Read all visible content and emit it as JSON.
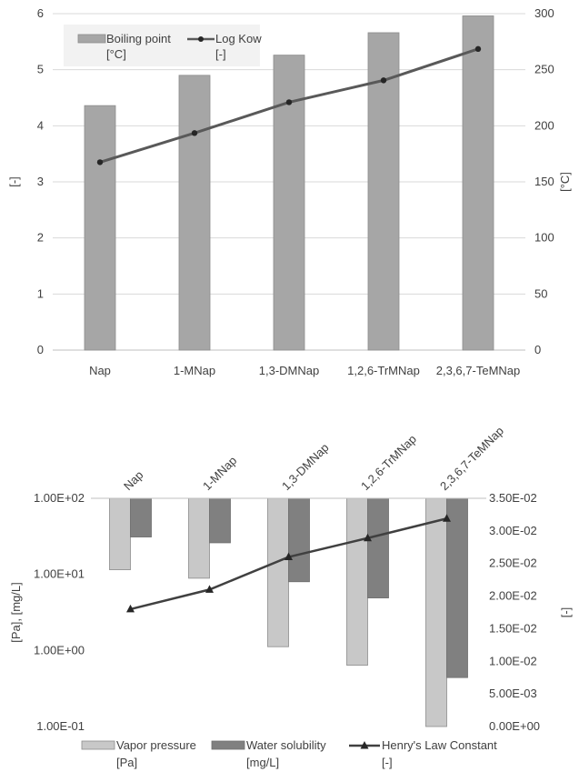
{
  "chart_data": [
    {
      "type": "bar",
      "categories": [
        "Nap",
        "1-MNap",
        "1,3-DMNap",
        "1,2,6-TrMNap",
        "2,3,6,7-TeMNap"
      ],
      "left_axis": {
        "label": "[-]",
        "ylim": [
          0,
          6
        ],
        "ticks": [
          "0",
          "1",
          "2",
          "3",
          "4",
          "5",
          "6"
        ]
      },
      "right_axis": {
        "label": "[°C]",
        "ylim": [
          0,
          300
        ],
        "ticks": [
          "0",
          "50",
          "100",
          "150",
          "200",
          "250",
          "300"
        ]
      },
      "grid": true,
      "legend_position": "top-left",
      "series": [
        {
          "name": "Boiling point",
          "unit": "[°C]",
          "type": "bar",
          "axis": "right",
          "color": "#a6a6a6",
          "values": [
            218,
            245,
            263,
            283,
            298
          ]
        },
        {
          "name": "Log Kow",
          "unit": "[-]",
          "type": "line",
          "axis": "left",
          "color": "#595959",
          "values": [
            3.35,
            3.87,
            4.42,
            4.81,
            5.37
          ]
        }
      ]
    },
    {
      "type": "bar",
      "categories": [
        "Nap",
        "1-MNap",
        "1,3-DMNap",
        "1,2,6-TrMNap",
        "2,3,6,7-TeMNap"
      ],
      "left_axis": {
        "label": "[Pa], [mg/L]",
        "scale": "log",
        "ylim": [
          0.1,
          100
        ],
        "ticks": [
          "1.00E+02",
          "1.00E+01",
          "1.00E+00",
          "1.00E-01"
        ]
      },
      "right_axis": {
        "label": "[-]",
        "ylim": [
          0,
          0.035
        ],
        "ticks": [
          "3.50E-02",
          "3.00E-02",
          "2.50E-02",
          "2.00E-02",
          "1.50E-02",
          "1.00E-02",
          "5.00E-03",
          "0.00E+00"
        ]
      },
      "grid": false,
      "legend_position": "bottom",
      "series": [
        {
          "name": "Vapor pressure",
          "unit": "[Pa]",
          "type": "bar",
          "axis": "left",
          "color": "#c8c8c8",
          "values": [
            11.5,
            8.9,
            1.12,
            0.64,
            0.1
          ]
        },
        {
          "name": "Water solubility",
          "unit": "[mg/L]",
          "type": "bar",
          "axis": "left",
          "color": "#808080",
          "values": [
            31,
            26,
            8,
            4.9,
            0.44
          ]
        },
        {
          "name": "Henry's Law Constant",
          "unit": "[-]",
          "type": "line",
          "axis": "right",
          "color": "#404040",
          "values": [
            0.018,
            0.021,
            0.026,
            0.0289,
            0.0319
          ]
        }
      ]
    }
  ]
}
